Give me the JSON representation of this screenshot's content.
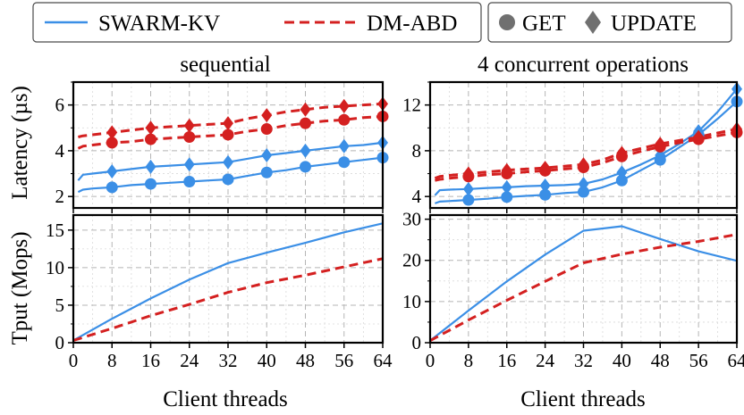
{
  "colors": {
    "swarm": "#3b8fe6",
    "dm": "#d42020",
    "marker_gray": "#707070",
    "grid": "#b5b5b5"
  },
  "legend": {
    "series": [
      "SWARM-KV",
      "DM-ABD"
    ],
    "markers": [
      {
        "label": "GET",
        "shape": "circle"
      },
      {
        "label": "UPDATE",
        "shape": "diamond"
      }
    ]
  },
  "titles": {
    "left": "sequential",
    "right": "4 concurrent operations"
  },
  "axes": {
    "ylabel_latency": "Latency (µs)",
    "ylabel_tput": "Tput (Mops)",
    "xlabel": "Client threads",
    "xticks": [
      0,
      8,
      16,
      24,
      32,
      40,
      48,
      56,
      64
    ],
    "xtick_labels": [
      "0",
      "8",
      "16",
      "24",
      "32",
      "40",
      "48",
      "56",
      "64"
    ]
  },
  "chart_data": [
    {
      "id": "lat_seq",
      "type": "line",
      "title": "sequential",
      "ylabel": "Latency (µs)",
      "xlim": [
        0,
        64
      ],
      "ylim": [
        1.5,
        7
      ],
      "yticks": [
        2,
        4,
        6
      ],
      "ytick_labels": [
        "2",
        "4",
        "6"
      ],
      "x": [
        1,
        2,
        4,
        8,
        12,
        16,
        20,
        24,
        28,
        32,
        36,
        40,
        44,
        48,
        52,
        56,
        60,
        64
      ],
      "markers_at": [
        8,
        16,
        24,
        32,
        40,
        48,
        56,
        64
      ],
      "series": [
        {
          "name": "SWARM-KV",
          "op": "GET",
          "style": "solid",
          "color": "#3b8fe6",
          "marker": "circle",
          "values": [
            2.2,
            2.3,
            2.35,
            2.4,
            2.5,
            2.55,
            2.6,
            2.65,
            2.7,
            2.75,
            2.9,
            3.05,
            3.15,
            3.3,
            3.4,
            3.5,
            3.6,
            3.7
          ]
        },
        {
          "name": "SWARM-KV",
          "op": "UPDATE",
          "style": "solid",
          "color": "#3b8fe6",
          "marker": "diamond",
          "values": [
            2.7,
            2.95,
            3.0,
            3.1,
            3.2,
            3.3,
            3.35,
            3.4,
            3.45,
            3.5,
            3.65,
            3.8,
            3.9,
            4.0,
            4.1,
            4.2,
            4.25,
            4.35
          ]
        },
        {
          "name": "DM-ABD",
          "op": "GET",
          "style": "dashed",
          "color": "#d42020",
          "marker": "circle",
          "values": [
            4.1,
            4.2,
            4.25,
            4.35,
            4.4,
            4.5,
            4.55,
            4.6,
            4.65,
            4.7,
            4.85,
            4.95,
            5.1,
            5.2,
            5.3,
            5.35,
            5.45,
            5.5
          ]
        },
        {
          "name": "DM-ABD",
          "op": "UPDATE",
          "style": "dashed",
          "color": "#d42020",
          "marker": "diamond",
          "values": [
            4.6,
            4.65,
            4.7,
            4.8,
            4.9,
            5.0,
            5.05,
            5.1,
            5.15,
            5.2,
            5.4,
            5.55,
            5.7,
            5.8,
            5.9,
            5.95,
            6.0,
            6.05
          ]
        }
      ]
    },
    {
      "id": "lat_conc",
      "type": "line",
      "title": "4 concurrent operations",
      "ylabel": "",
      "xlim": [
        0,
        64
      ],
      "ylim": [
        3,
        14
      ],
      "yticks": [
        4,
        8,
        12
      ],
      "ytick_labels": [
        "4",
        "8",
        "12"
      ],
      "x": [
        1,
        2,
        4,
        8,
        12,
        16,
        20,
        24,
        28,
        32,
        36,
        40,
        44,
        48,
        52,
        56,
        60,
        64
      ],
      "markers_at": [
        8,
        16,
        24,
        32,
        40,
        48,
        56,
        64
      ],
      "series": [
        {
          "name": "SWARM-KV",
          "op": "GET",
          "style": "solid",
          "color": "#3b8fe6",
          "marker": "circle",
          "values": [
            3.4,
            3.55,
            3.6,
            3.7,
            3.8,
            3.95,
            4.05,
            4.15,
            4.3,
            4.4,
            4.8,
            5.4,
            6.3,
            7.2,
            8.3,
            9.4,
            10.8,
            12.3
          ]
        },
        {
          "name": "SWARM-KV",
          "op": "UPDATE",
          "style": "solid",
          "color": "#3b8fe6",
          "marker": "diamond",
          "values": [
            4.1,
            4.55,
            4.6,
            4.65,
            4.75,
            4.8,
            4.9,
            4.95,
            5.0,
            5.1,
            5.5,
            6.1,
            6.8,
            7.6,
            8.6,
            9.7,
            11.4,
            13.4
          ]
        },
        {
          "name": "DM-ABD",
          "op": "GET",
          "style": "dashed",
          "color": "#d42020",
          "marker": "circle",
          "values": [
            5.4,
            5.5,
            5.6,
            5.75,
            5.9,
            6.0,
            6.15,
            6.25,
            6.4,
            6.55,
            6.95,
            7.5,
            7.95,
            8.35,
            8.7,
            9.0,
            9.3,
            9.6
          ]
        },
        {
          "name": "DM-ABD",
          "op": "UPDATE",
          "style": "dashed",
          "color": "#d42020",
          "marker": "diamond",
          "values": [
            5.6,
            5.75,
            5.85,
            6.0,
            6.15,
            6.3,
            6.4,
            6.5,
            6.65,
            6.8,
            7.2,
            7.8,
            8.2,
            8.6,
            8.9,
            9.2,
            9.55,
            9.9
          ]
        }
      ]
    },
    {
      "id": "tput_seq",
      "type": "line",
      "title": "",
      "ylabel": "Tput (Mops)",
      "xlabel": "Client threads",
      "xlim": [
        0,
        64
      ],
      "ylim": [
        0,
        17
      ],
      "yticks": [
        0,
        5,
        10,
        15
      ],
      "ytick_labels": [
        "0",
        "5",
        "10",
        "15"
      ],
      "x": [
        0,
        8,
        16,
        24,
        32,
        40,
        48,
        56,
        64
      ],
      "series": [
        {
          "name": "SWARM-KV",
          "style": "solid",
          "color": "#3b8fe6",
          "values": [
            0.3,
            3.2,
            5.9,
            8.4,
            10.6,
            12.0,
            13.3,
            14.7,
            15.9
          ]
        },
        {
          "name": "DM-ABD",
          "style": "dashed",
          "color": "#d42020",
          "values": [
            0.3,
            1.9,
            3.6,
            5.1,
            6.7,
            8.0,
            9.0,
            10.1,
            11.2
          ]
        }
      ]
    },
    {
      "id": "tput_conc",
      "type": "line",
      "title": "",
      "ylabel": "",
      "xlabel": "Client threads",
      "xlim": [
        0,
        64
      ],
      "ylim": [
        0,
        31
      ],
      "yticks": [
        0,
        10,
        20,
        30
      ],
      "ytick_labels": [
        "0",
        "10",
        "20",
        "30"
      ],
      "x": [
        0,
        8,
        16,
        24,
        32,
        40,
        48,
        56,
        64
      ],
      "series": [
        {
          "name": "SWARM-KV",
          "style": "solid",
          "color": "#3b8fe6",
          "values": [
            0.5,
            7.8,
            14.9,
            21.4,
            27.2,
            28.3,
            25.2,
            22.2,
            19.9
          ]
        },
        {
          "name": "DM-ABD",
          "style": "dashed",
          "color": "#d42020",
          "values": [
            0.5,
            5.5,
            10.3,
            14.9,
            19.4,
            21.5,
            23.2,
            24.6,
            26.3
          ]
        }
      ]
    }
  ]
}
